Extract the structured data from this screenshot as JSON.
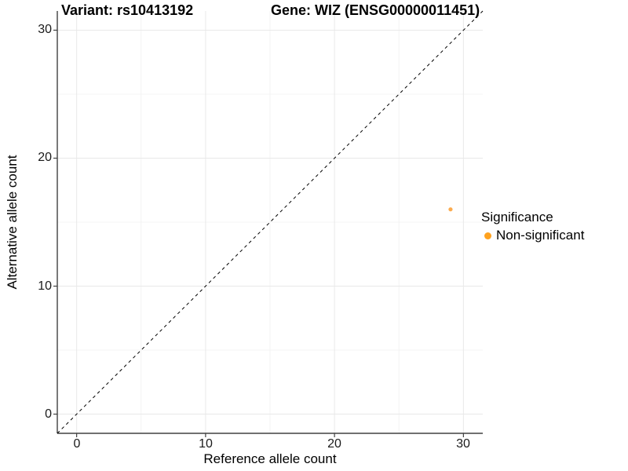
{
  "chart_data": {
    "type": "scatter",
    "title_left": "Variant: rs10413192",
    "title_right": "Gene: WIZ (ENSG00000011451)",
    "xlabel": "Reference allele count",
    "ylabel": "Alternative allele count",
    "xlim": [
      -1.5,
      31.5
    ],
    "ylim": [
      -1.5,
      31.5
    ],
    "x_major_ticks": [
      0,
      10,
      20,
      30
    ],
    "y_major_ticks": [
      0,
      10,
      20,
      30
    ],
    "x_minor_ticks": [
      5,
      15,
      25
    ],
    "y_minor_ticks": [
      5,
      15,
      25
    ],
    "x_tick_labels": [
      "0",
      "10",
      "20",
      "30"
    ],
    "y_tick_labels": [
      "0",
      "10",
      "20",
      "30"
    ],
    "grid": "major+minor",
    "reference_line": {
      "type": "identity",
      "slope": 1,
      "intercept": 0,
      "style": "dashed",
      "color": "#000000"
    },
    "series": [
      {
        "name": "Non-significant",
        "color": "#FBAB4E",
        "points": [
          {
            "x": 29,
            "y": 16
          }
        ]
      }
    ],
    "legend": {
      "title": "Significance",
      "position": "right",
      "entries": [
        {
          "label": "Non-significant",
          "color": "#FFA21F"
        }
      ]
    },
    "colors": {
      "grid_major": "#E9E9E9",
      "grid_minor": "#F0F0F0",
      "axis": "#404040",
      "background": "#FFFFFF"
    }
  }
}
